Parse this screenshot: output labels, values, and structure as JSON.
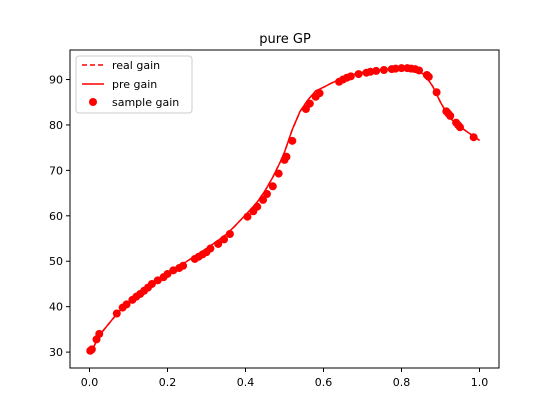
{
  "chart_data": {
    "type": "line",
    "title": "pure GP",
    "xlabel": "",
    "ylabel": "",
    "xlim": [
      -0.05,
      1.05
    ],
    "ylim": [
      26.5,
      96.5
    ],
    "xticks": [
      0.0,
      0.2,
      0.4,
      0.6,
      0.8,
      1.0
    ],
    "xtick_labels": [
      "0.0",
      "0.2",
      "0.4",
      "0.6",
      "0.8",
      "1.0"
    ],
    "yticks": [
      30,
      40,
      50,
      60,
      70,
      80,
      90
    ],
    "ytick_labels": [
      "30",
      "40",
      "50",
      "60",
      "70",
      "80",
      "90"
    ],
    "grid": false,
    "legend_position": "top-left",
    "color": "#ff0000",
    "series": [
      {
        "name": "real gain",
        "style": "dashed-line",
        "x": [
          0.0,
          0.01,
          0.02,
          0.03,
          0.05,
          0.07,
          0.09,
          0.11,
          0.13,
          0.15,
          0.17,
          0.19,
          0.21,
          0.23,
          0.25,
          0.27,
          0.29,
          0.31,
          0.33,
          0.35,
          0.37,
          0.39,
          0.41,
          0.43,
          0.45,
          0.47,
          0.49,
          0.5,
          0.51,
          0.52,
          0.54,
          0.56,
          0.58,
          0.6,
          0.62,
          0.64,
          0.66,
          0.68,
          0.7,
          0.72,
          0.74,
          0.76,
          0.78,
          0.8,
          0.82,
          0.84,
          0.86,
          0.88,
          0.9,
          0.92,
          0.94,
          0.96,
          0.98,
          1.0
        ],
        "y": [
          30.0,
          31.0,
          32.8,
          34.2,
          36.3,
          38.4,
          40.2,
          41.6,
          43.0,
          44.3,
          45.5,
          46.6,
          47.7,
          48.9,
          50.0,
          51.1,
          52.2,
          53.4,
          54.6,
          55.9,
          57.5,
          59.3,
          61.1,
          63.0,
          65.5,
          68.5,
          72.0,
          74.0,
          76.5,
          79.0,
          83.0,
          85.5,
          87.5,
          88.3,
          89.2,
          90.0,
          90.7,
          91.2,
          91.6,
          91.9,
          92.1,
          92.3,
          92.4,
          92.5,
          92.4,
          92.0,
          91.0,
          88.5,
          85.0,
          82.0,
          80.2,
          79.0,
          77.8,
          76.6
        ]
      },
      {
        "name": "pre gain",
        "style": "solid-line",
        "x": [
          0.0,
          0.01,
          0.02,
          0.03,
          0.05,
          0.07,
          0.09,
          0.11,
          0.13,
          0.15,
          0.17,
          0.19,
          0.21,
          0.23,
          0.25,
          0.27,
          0.29,
          0.31,
          0.33,
          0.35,
          0.37,
          0.39,
          0.41,
          0.43,
          0.45,
          0.47,
          0.49,
          0.5,
          0.51,
          0.52,
          0.54,
          0.56,
          0.58,
          0.6,
          0.62,
          0.64,
          0.66,
          0.68,
          0.7,
          0.72,
          0.74,
          0.76,
          0.78,
          0.8,
          0.82,
          0.84,
          0.86,
          0.88,
          0.9,
          0.92,
          0.94,
          0.96,
          0.98,
          1.0
        ],
        "y": [
          30.0,
          31.0,
          32.8,
          34.2,
          36.3,
          38.4,
          40.2,
          41.6,
          43.0,
          44.3,
          45.5,
          46.6,
          47.7,
          48.9,
          50.0,
          51.1,
          52.2,
          53.4,
          54.6,
          55.9,
          57.5,
          59.3,
          61.1,
          63.0,
          65.5,
          68.5,
          72.0,
          74.0,
          76.5,
          79.0,
          83.0,
          85.5,
          87.5,
          88.3,
          89.2,
          90.0,
          90.7,
          91.2,
          91.6,
          91.9,
          92.1,
          92.3,
          92.4,
          92.5,
          92.4,
          92.0,
          91.0,
          88.5,
          85.0,
          82.0,
          80.2,
          79.0,
          77.8,
          76.6
        ]
      },
      {
        "name": "sample gain",
        "style": "markers",
        "x": [
          0.002,
          0.006,
          0.018,
          0.025,
          0.07,
          0.085,
          0.095,
          0.11,
          0.12,
          0.13,
          0.14,
          0.15,
          0.16,
          0.175,
          0.19,
          0.2,
          0.215,
          0.23,
          0.24,
          0.27,
          0.28,
          0.29,
          0.3,
          0.31,
          0.33,
          0.345,
          0.36,
          0.405,
          0.42,
          0.43,
          0.445,
          0.455,
          0.47,
          0.485,
          0.5,
          0.505,
          0.52,
          0.555,
          0.565,
          0.58,
          0.59,
          0.64,
          0.65,
          0.66,
          0.67,
          0.69,
          0.71,
          0.72,
          0.735,
          0.755,
          0.775,
          0.785,
          0.8,
          0.815,
          0.825,
          0.835,
          0.845,
          0.865,
          0.87,
          0.89,
          0.915,
          0.92,
          0.925,
          0.94,
          0.945,
          0.95,
          0.985
        ],
        "y": [
          30.3,
          30.6,
          32.8,
          34.0,
          38.5,
          39.8,
          40.5,
          41.5,
          42.2,
          42.8,
          43.5,
          44.2,
          45.0,
          45.8,
          46.5,
          47.2,
          48.0,
          48.5,
          49.0,
          50.5,
          51.0,
          51.5,
          52.0,
          52.8,
          53.8,
          54.8,
          56.0,
          59.8,
          61.0,
          62.0,
          63.5,
          64.8,
          66.5,
          69.3,
          72.3,
          73.0,
          76.5,
          83.5,
          84.7,
          86.2,
          87.0,
          89.5,
          90.0,
          90.4,
          90.7,
          91.2,
          91.5,
          91.7,
          91.9,
          92.1,
          92.3,
          92.4,
          92.5,
          92.5,
          92.4,
          92.3,
          92.0,
          91.0,
          90.6,
          87.2,
          83.0,
          82.5,
          82.0,
          80.5,
          80.0,
          79.5,
          77.3
        ]
      }
    ]
  }
}
